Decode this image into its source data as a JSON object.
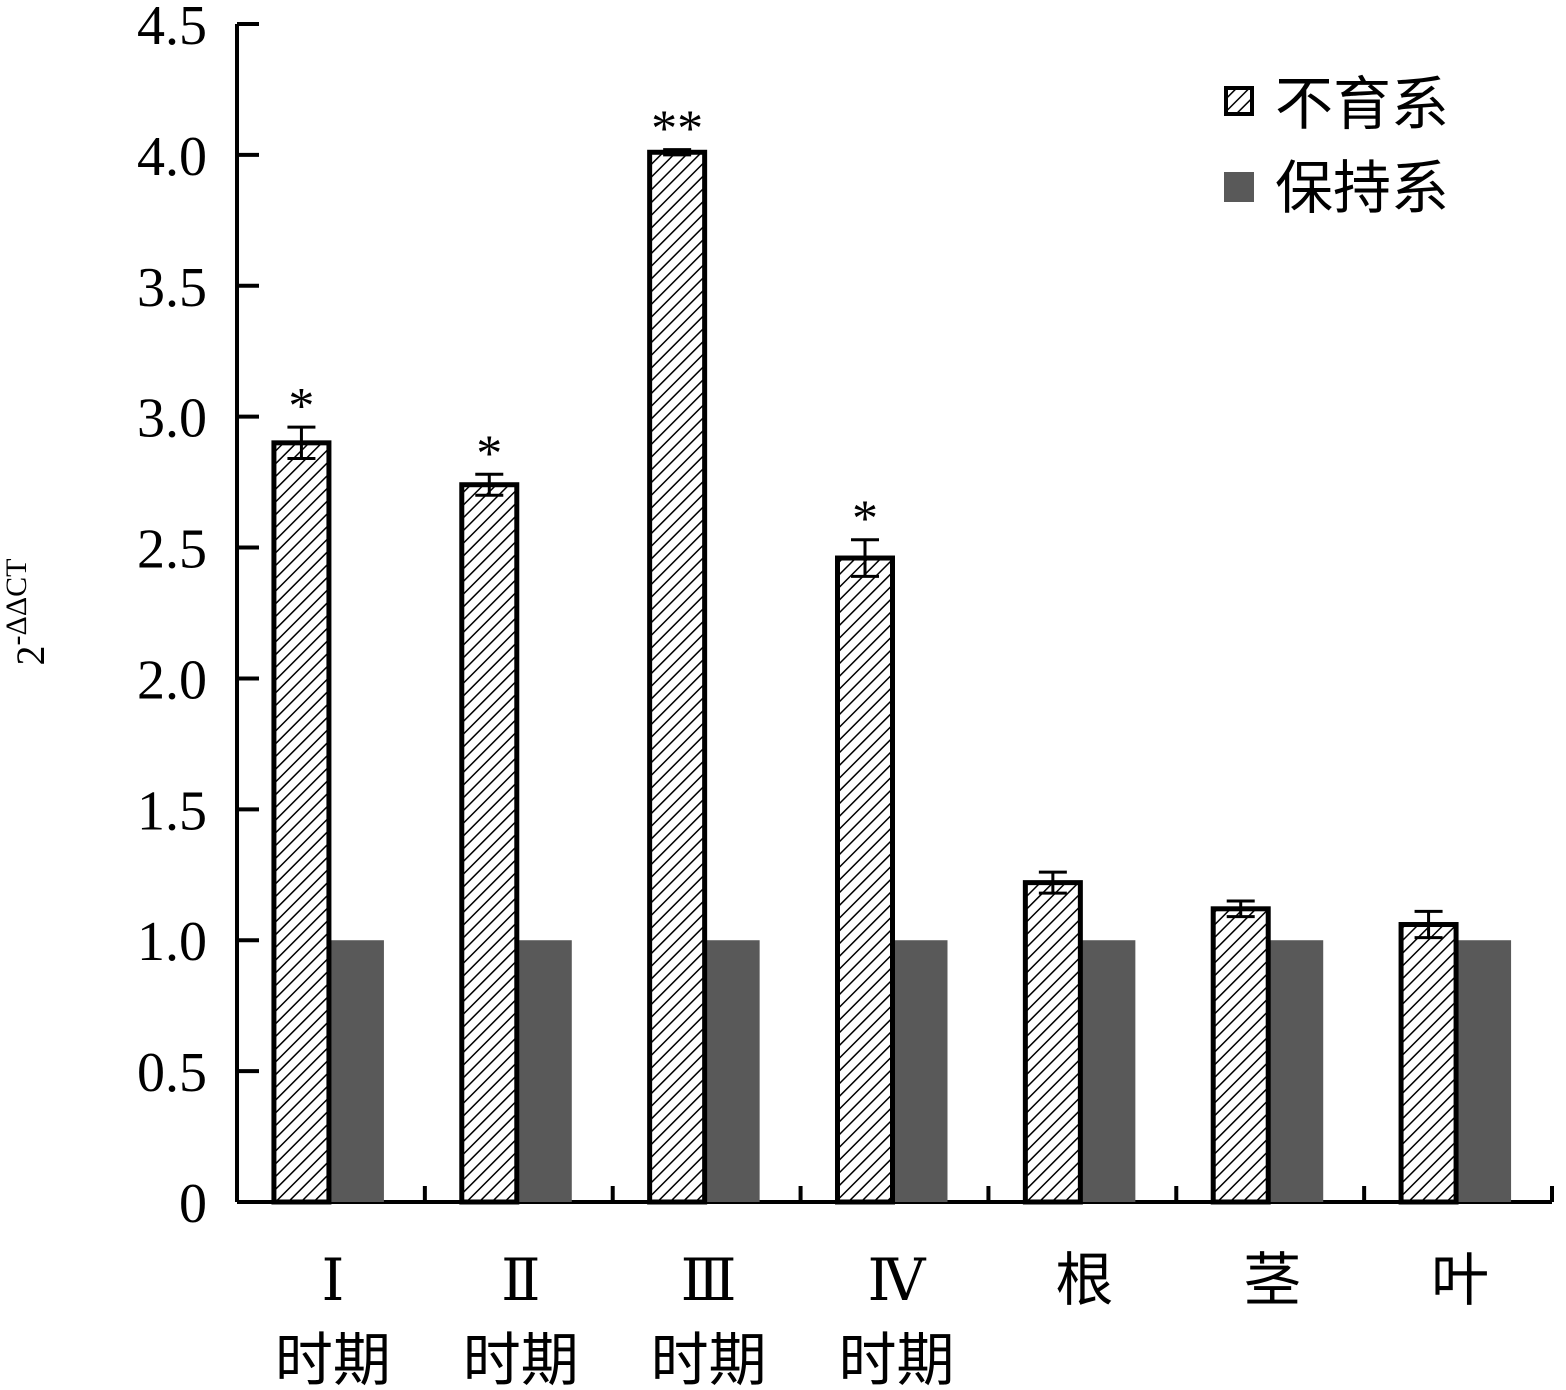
{
  "chart_data": {
    "type": "bar",
    "ylabel": {
      "base": "2",
      "sup": "-ΔΔCT"
    },
    "ylim": [
      0,
      4.5
    ],
    "yticks": [
      "0",
      "0.5",
      "1.0",
      "1.5",
      "2.0",
      "2.5",
      "3.0",
      "3.5",
      "4.0",
      "4.5"
    ],
    "categories": [
      {
        "line1": "Ⅰ",
        "line2": "时期"
      },
      {
        "line1": "Ⅱ",
        "line2": "时期"
      },
      {
        "line1": "Ⅲ",
        "line2": "时期"
      },
      {
        "line1": "Ⅳ",
        "line2": "时期"
      },
      {
        "line1": "根",
        "line2": ""
      },
      {
        "line1": "茎",
        "line2": ""
      },
      {
        "line1": "叶",
        "line2": ""
      }
    ],
    "series": [
      {
        "name": "不育系",
        "style": "hatched",
        "values": [
          2.9,
          2.74,
          4.01,
          2.46,
          1.22,
          1.12,
          1.06
        ],
        "errors": [
          0.06,
          0.04,
          0.01,
          0.07,
          0.04,
          0.03,
          0.05
        ],
        "significance": [
          "*",
          "*",
          "**",
          "*",
          "",
          "",
          ""
        ]
      },
      {
        "name": "保持系",
        "style": "solid",
        "color": "#595959",
        "values": [
          1.0,
          1.0,
          1.0,
          1.0,
          1.0,
          1.0,
          1.0
        ]
      }
    ],
    "legend_position": "top-right",
    "grid": false
  }
}
